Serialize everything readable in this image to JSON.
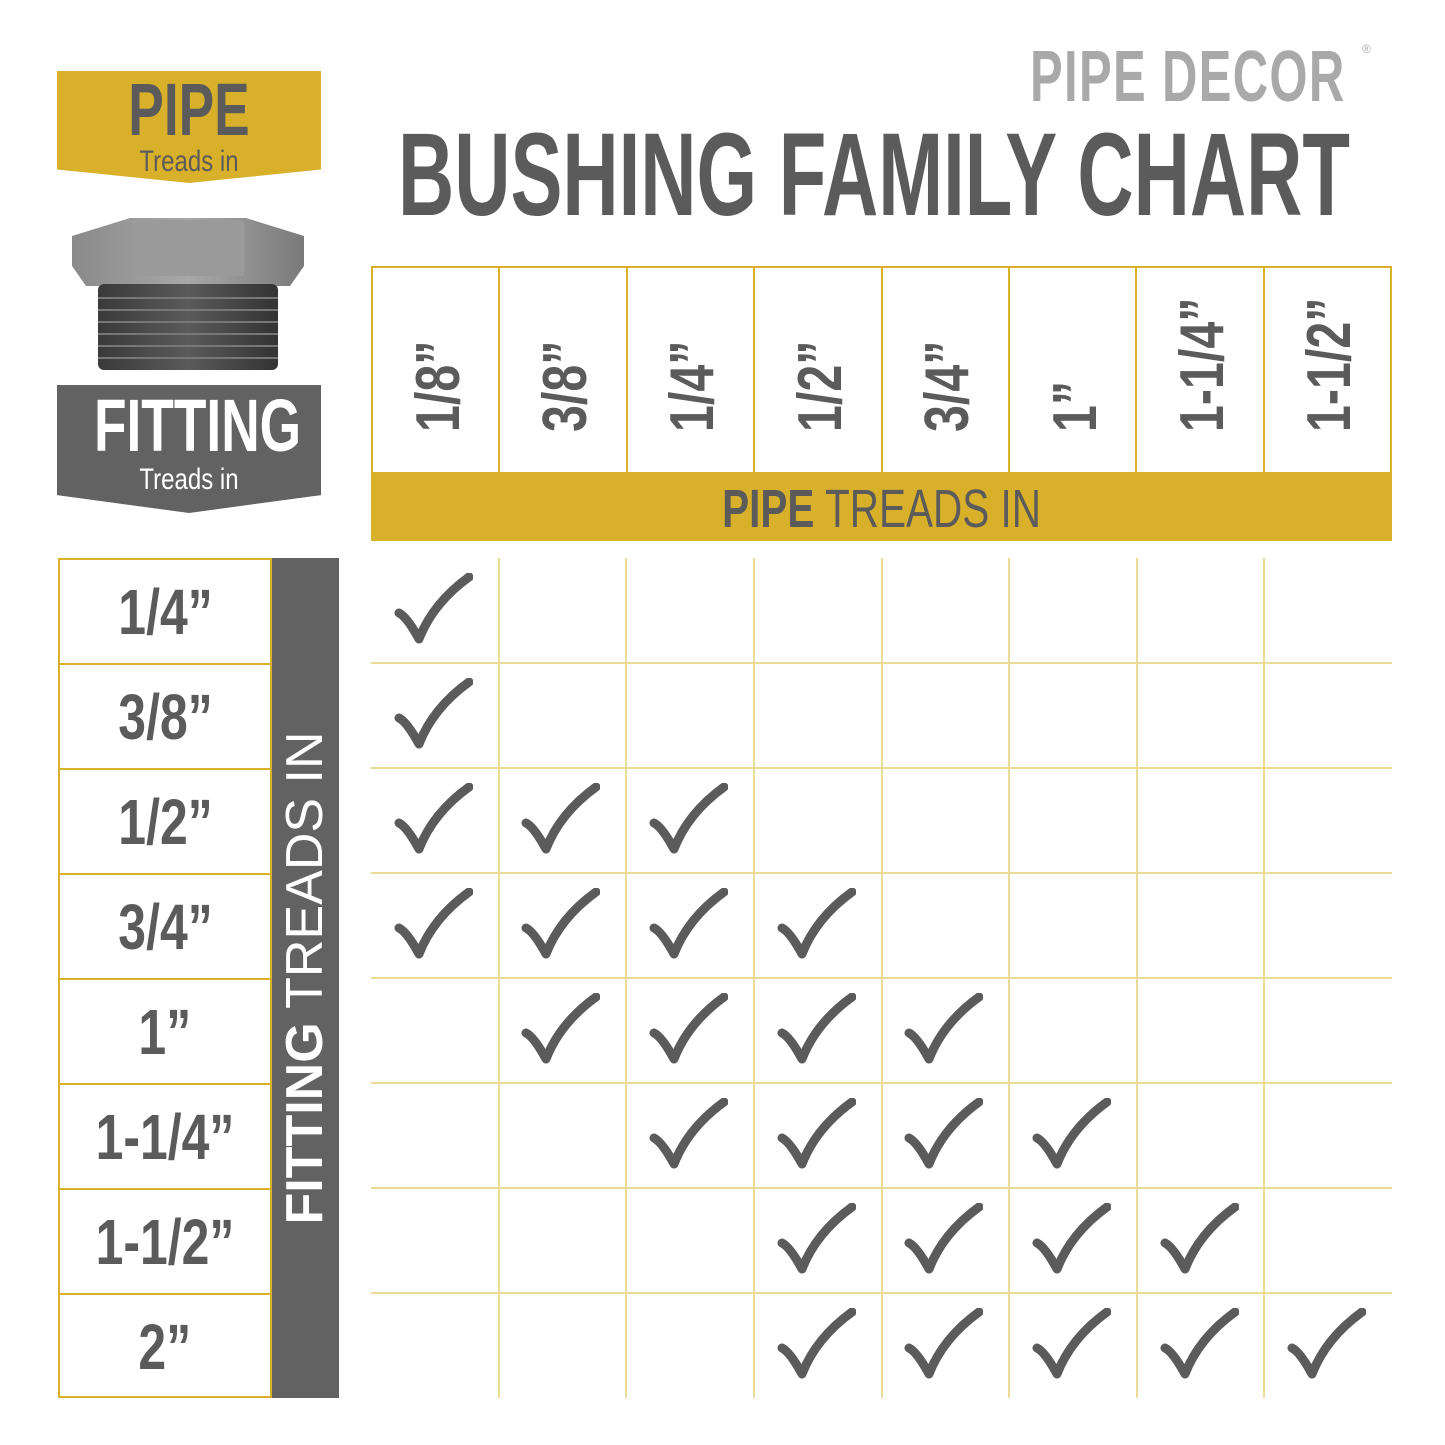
{
  "brand": {
    "name": "PIPE DECOR",
    "registered": "®"
  },
  "title": "BUSHING FAMILY CHART",
  "legend": {
    "pipe": {
      "big": "PIPE",
      "small": "Treads in"
    },
    "fitting": {
      "big": "FITTING",
      "small": "Treads in"
    }
  },
  "colors": {
    "gold": "#d9b02a",
    "gray": "#5b5b5b",
    "grid": "#eadb96"
  },
  "chart_data": {
    "type": "table",
    "title": "BUSHING FAMILY CHART",
    "column_axis_label": {
      "bold": "PIPE",
      "rest": " TREADS IN"
    },
    "row_axis_label": {
      "bold": "FITTING",
      "rest": " TREADS IN"
    },
    "columns": [
      "1/8”",
      "3/8”",
      "1/4”",
      "1/2”",
      "3/4”",
      "1”",
      "1-1/4”",
      "1-1/2”"
    ],
    "rows": [
      "1/4”",
      "3/8”",
      "1/2”",
      "3/4”",
      "1”",
      "1-1/4”",
      "1-1/2”",
      "2”"
    ],
    "mark": "check",
    "matrix": [
      [
        1,
        0,
        0,
        0,
        0,
        0,
        0,
        0
      ],
      [
        1,
        0,
        0,
        0,
        0,
        0,
        0,
        0
      ],
      [
        1,
        1,
        1,
        0,
        0,
        0,
        0,
        0
      ],
      [
        1,
        1,
        1,
        1,
        0,
        0,
        0,
        0
      ],
      [
        0,
        1,
        1,
        1,
        1,
        0,
        0,
        0
      ],
      [
        0,
        0,
        1,
        1,
        1,
        1,
        0,
        0
      ],
      [
        0,
        0,
        0,
        1,
        1,
        1,
        1,
        0
      ],
      [
        0,
        0,
        0,
        1,
        1,
        1,
        1,
        1
      ]
    ]
  }
}
